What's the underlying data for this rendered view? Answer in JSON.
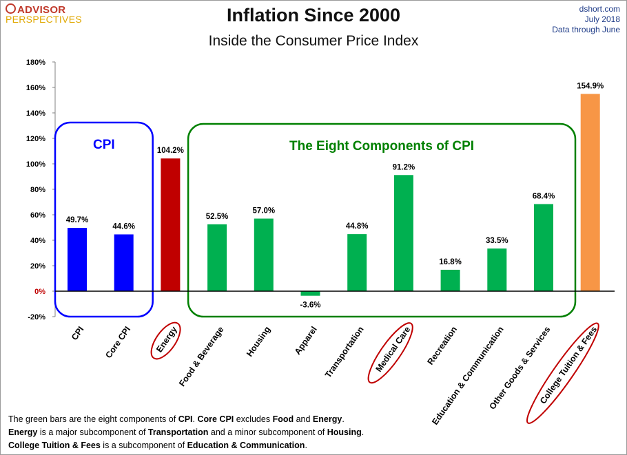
{
  "header": {
    "logo_line1": "ADVISOR",
    "logo_line2": "PERSPECTIVES",
    "title": "Inflation Since 2000",
    "subtitle": "Inside the Consumer Price Index",
    "source_line1": "dshort.com",
    "source_line2": "July 2018",
    "source_line3": "Data through June"
  },
  "chart_data": {
    "type": "bar",
    "title": "Inflation Since 2000",
    "subtitle": "Inside the Consumer Price Index",
    "categories": [
      "CPI",
      "Core CPI",
      "Energy",
      "Food & Beverage",
      "Housing",
      "Apparel",
      "Transportation",
      "Medical Care",
      "Recreation",
      "Education & Communication",
      "Other Goods & Services",
      "College Tuition & Fees"
    ],
    "values": [
      49.7,
      44.6,
      104.2,
      52.5,
      57.0,
      -3.6,
      44.8,
      91.2,
      16.8,
      33.5,
      68.4,
      154.9
    ],
    "value_labels": [
      "49.7%",
      "44.6%",
      "104.2%",
      "52.5%",
      "57.0%",
      "-3.6%",
      "44.8%",
      "91.2%",
      "16.8%",
      "33.5%",
      "68.4%",
      "154.9%"
    ],
    "bar_colors": [
      "#0000ff",
      "#0000ff",
      "#c00000",
      "#00b050",
      "#00b050",
      "#00b050",
      "#00b050",
      "#00b050",
      "#00b050",
      "#00b050",
      "#00b050",
      "#f79646"
    ],
    "circled_categories": [
      "Energy",
      "Medical Care",
      "College Tuition & Fees"
    ],
    "ylim": [
      -20,
      180
    ],
    "yticks": [
      -20,
      0,
      20,
      40,
      60,
      80,
      100,
      120,
      140,
      160,
      180
    ],
    "ytick_labels": [
      "-20%",
      "0%",
      "20%",
      "40%",
      "60%",
      "80%",
      "100%",
      "120%",
      "140%",
      "160%",
      "180%"
    ],
    "xlabel": "",
    "ylabel": "",
    "grid": false,
    "groups": [
      {
        "label": "CPI",
        "color": "#0000ff",
        "members": [
          "CPI",
          "Core CPI"
        ]
      },
      {
        "label": "The Eight Components of CPI",
        "color": "#008000",
        "members": [
          "Food & Beverage",
          "Housing",
          "Apparel",
          "Transportation",
          "Medical Care",
          "Recreation",
          "Education & Communication",
          "Other Goods & Services"
        ]
      }
    ]
  },
  "footnote": {
    "line1": [
      {
        "t": "The green bars are the eight components of ",
        "b": false
      },
      {
        "t": "CPI",
        "b": true
      },
      {
        "t": ". ",
        "b": false
      },
      {
        "t": "Core CPI",
        "b": true
      },
      {
        "t": " excludes ",
        "b": false
      },
      {
        "t": "Food",
        "b": true
      },
      {
        "t": " and ",
        "b": false
      },
      {
        "t": "Energy",
        "b": true
      },
      {
        "t": ".",
        "b": false
      }
    ],
    "line2": [
      {
        "t": "Energy",
        "b": true
      },
      {
        "t": " is a  major subcomponent of ",
        "b": false
      },
      {
        "t": "Transportation",
        "b": true
      },
      {
        "t": " and a minor subcomponent of ",
        "b": false
      },
      {
        "t": "Housing",
        "b": true
      },
      {
        "t": ".",
        "b": false
      }
    ],
    "line3": [
      {
        "t": "College Tuition & Fees",
        "b": true
      },
      {
        "t": " is a subcomponent of ",
        "b": false
      },
      {
        "t": "Education & Communication",
        "b": true
      },
      {
        "t": ".",
        "b": false
      }
    ]
  }
}
